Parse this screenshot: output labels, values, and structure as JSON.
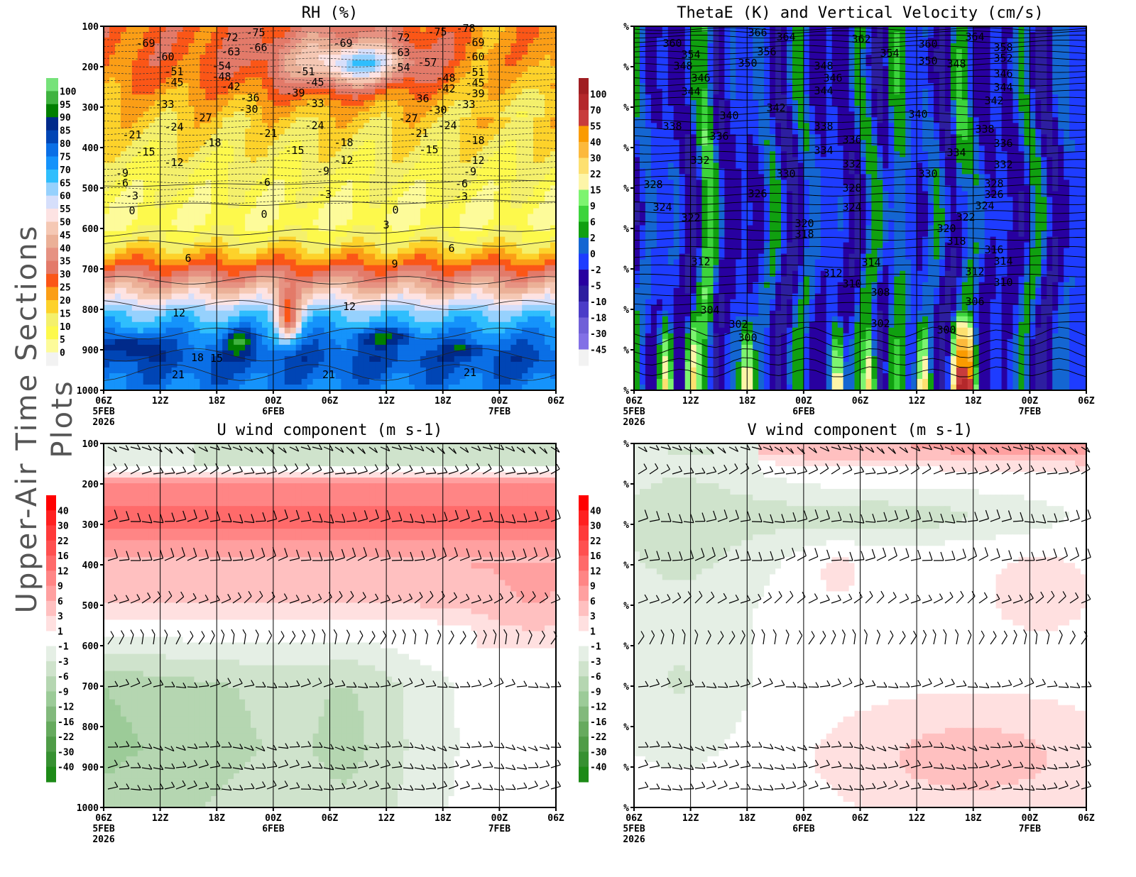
{
  "side_title": "Upper-Air Time Sections Plots",
  "x_ticks": [
    "06Z",
    "12Z",
    "18Z",
    "00Z",
    "06Z",
    "12Z",
    "18Z",
    "00Z",
    "06Z"
  ],
  "x_dates": {
    "0": "5FEB",
    "3": "6FEB",
    "7": "7FEB"
  },
  "x_year": "2026",
  "chart_data": [
    {
      "type": "heatmap",
      "title": "RH (%)",
      "y_ticks": [
        "100",
        "200",
        "300",
        "400",
        "500",
        "600",
        "700",
        "800",
        "900",
        "1000"
      ],
      "ylim": [
        1000,
        100
      ],
      "colorbar": {
        "labels": [
          "100",
          "95",
          "90",
          "85",
          "80",
          "75",
          "70",
          "65",
          "60",
          "55",
          "50",
          "45",
          "40",
          "35",
          "30",
          "25",
          "20",
          "15",
          "10",
          "5",
          "0"
        ],
        "colors_top_to_bottom": [
          "#76e27a",
          "#3fb33f",
          "#007f00",
          "#002a8a",
          "#0045b5",
          "#0a6fe6",
          "#1593fb",
          "#2fbefd",
          "#96d1fd",
          "#d6dffb",
          "#fde3e3",
          "#f5c8b4",
          "#ebb097",
          "#e69282",
          "#e37a69",
          "#fb5617",
          "#fb9e16",
          "#fdd22a",
          "#f4f06c",
          "#fdf94c",
          "#fdfb9a",
          "#f2f2f2"
        ]
      },
      "contour_labels": [
        "-69",
        "-60",
        "-51",
        "-45",
        "-33",
        "-72",
        "-75",
        "-63",
        "-66",
        "-54",
        "-48",
        "-42",
        "-36",
        "-30",
        "-27",
        "-24",
        "-21",
        "-18",
        "-15",
        "-12",
        "-9",
        "-6",
        "-3",
        "0",
        "-51",
        "-45",
        "-39",
        "-33",
        "-24",
        "-21",
        "-15",
        "-9",
        "-6",
        "-3",
        "0",
        "-69",
        "-18",
        "-12",
        "-72",
        "-63",
        "-54",
        "-57",
        "-75",
        "-78",
        "-69",
        "-60",
        "-51",
        "-45",
        "-39",
        "-33",
        "-48",
        "-42",
        "-36",
        "-30",
        "-27",
        "-24",
        "-21",
        "-15",
        "-18",
        "-12",
        "-9",
        "-6",
        "-3",
        "0",
        "3",
        "6",
        "6",
        "9",
        "12",
        "12",
        "15",
        "18",
        "21",
        "21",
        "21"
      ]
    },
    {
      "type": "heatmap",
      "title": "ThetaE (K) and Vertical Velocity (cm/s)",
      "y_ticks": [
        "%",
        "%",
        "%",
        "%",
        "%",
        "%",
        "%",
        "%",
        "%",
        "%"
      ],
      "colorbar": {
        "labels": [
          "100",
          "70",
          "55",
          "40",
          "30",
          "22",
          "15",
          "9",
          "6",
          "2",
          "0",
          "-2",
          "-5",
          "-10",
          "-18",
          "-30",
          "-45"
        ],
        "colors_top_to_bottom": [
          "#a01e22",
          "#b4282b",
          "#c83c3c",
          "#fa9b00",
          "#fcb93c",
          "#fde070",
          "#fdf5a8",
          "#7df470",
          "#3cd43c",
          "#10a010",
          "#1466d2",
          "#1e3cff",
          "#2800a0",
          "#2d1ea0",
          "#4b3cc8",
          "#7060d8",
          "#8270e6",
          "#f2f2f2"
        ]
      },
      "contour_labels": [
        "360",
        "354",
        "348",
        "346",
        "344",
        "340",
        "338",
        "336",
        "332",
        "328",
        "324",
        "322",
        "312",
        "304",
        "302",
        "300",
        "366",
        "364",
        "356",
        "350",
        "342",
        "330",
        "326",
        "320",
        "318",
        "348",
        "346",
        "344",
        "338",
        "336",
        "334",
        "332",
        "328",
        "324",
        "312",
        "310",
        "308",
        "302",
        "314",
        "362",
        "354",
        "360",
        "350",
        "348",
        "340",
        "330",
        "322",
        "320",
        "318",
        "306",
        "300",
        "364",
        "358",
        "352",
        "346",
        "344",
        "342",
        "338",
        "336",
        "334",
        "332",
        "328",
        "326",
        "324",
        "316",
        "314",
        "312",
        "310"
      ]
    },
    {
      "type": "heatmap",
      "title": "U wind component (m s-1)",
      "y_ticks": [
        "100",
        "200",
        "300",
        "400",
        "500",
        "600",
        "700",
        "800",
        "900",
        "1000"
      ],
      "ylim": [
        1000,
        100
      ],
      "colorbar": {
        "labels": [
          "40",
          "30",
          "22",
          "16",
          "12",
          "9",
          "6",
          "3",
          "1",
          "-1",
          "-3",
          "-6",
          "-9",
          "-12",
          "-16",
          "-22",
          "-30",
          "-40"
        ],
        "colors_top_to_bottom": [
          "#ff0000",
          "#ff2020",
          "#ff3a3a",
          "#ff5050",
          "#ff6a6a",
          "#ff8585",
          "#ffa0a0",
          "#ffc0c0",
          "#ffe0e0",
          "#ffffff",
          "#e5efe5",
          "#cfe3cc",
          "#b5d6b1",
          "#9ccb98",
          "#82b97c",
          "#66aa5e",
          "#4f9c47",
          "#369031",
          "#1d8a17"
        ]
      }
    },
    {
      "type": "heatmap",
      "title": "V wind component (m s-1)",
      "y_ticks": [
        "%",
        "%",
        "%",
        "%",
        "%",
        "%",
        "%",
        "%",
        "%",
        "%"
      ],
      "colorbar": {
        "labels": [
          "40",
          "30",
          "22",
          "16",
          "12",
          "9",
          "6",
          "3",
          "1",
          "-1",
          "-3",
          "-6",
          "-9",
          "-12",
          "-16",
          "-22",
          "-30",
          "-40"
        ],
        "colors_top_to_bottom": [
          "#ff0000",
          "#ff2020",
          "#ff3a3a",
          "#ff5050",
          "#ff6a6a",
          "#ff8585",
          "#ffa0a0",
          "#ffc0c0",
          "#ffe0e0",
          "#ffffff",
          "#e5efe5",
          "#cfe3cc",
          "#b5d6b1",
          "#9ccb98",
          "#82b97c",
          "#66aa5e",
          "#4f9c47",
          "#369031",
          "#1d8a17"
        ]
      }
    }
  ]
}
